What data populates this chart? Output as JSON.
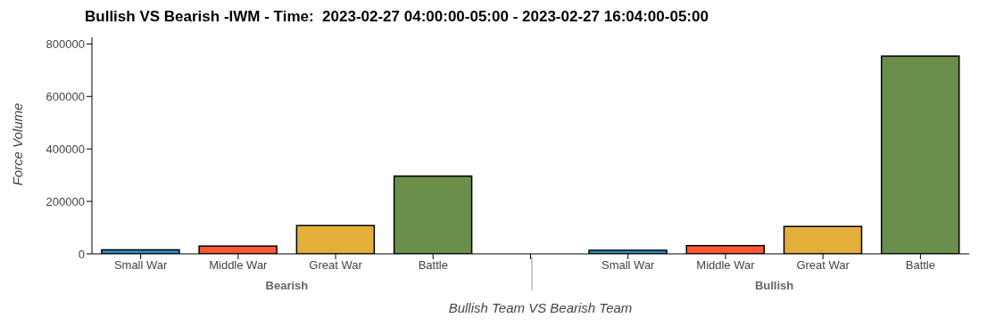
{
  "chart_data": {
    "type": "bar",
    "title": "Bullish VS Bearish -IWM - Time:  2023-02-27 04:00:00-05:00 - 2023-02-27 16:04:00-05:00",
    "xlabel": "Bullish Team VS Bearish Team",
    "ylabel": "Force Volume",
    "categories": [
      "Small War",
      "Middle War",
      "Great War",
      "Battle",
      null,
      "Small War",
      "Middle War",
      "Great War",
      "Battle"
    ],
    "values": [
      15000,
      30000,
      108000,
      296000,
      null,
      14000,
      31000,
      104000,
      754000
    ],
    "colors": [
      "#2b8fcc",
      "#ff5733",
      "#e3ae3a",
      "#6a8f4c",
      null,
      "#2b8fcc",
      "#ff5733",
      "#e3ae3a",
      "#6a8f4c"
    ],
    "annotations": [
      "Bearish",
      "Bullish"
    ],
    "ylim": [
      0,
      825000
    ],
    "yticks": [
      0,
      200000,
      400000,
      600000,
      800000
    ],
    "grid": false
  }
}
